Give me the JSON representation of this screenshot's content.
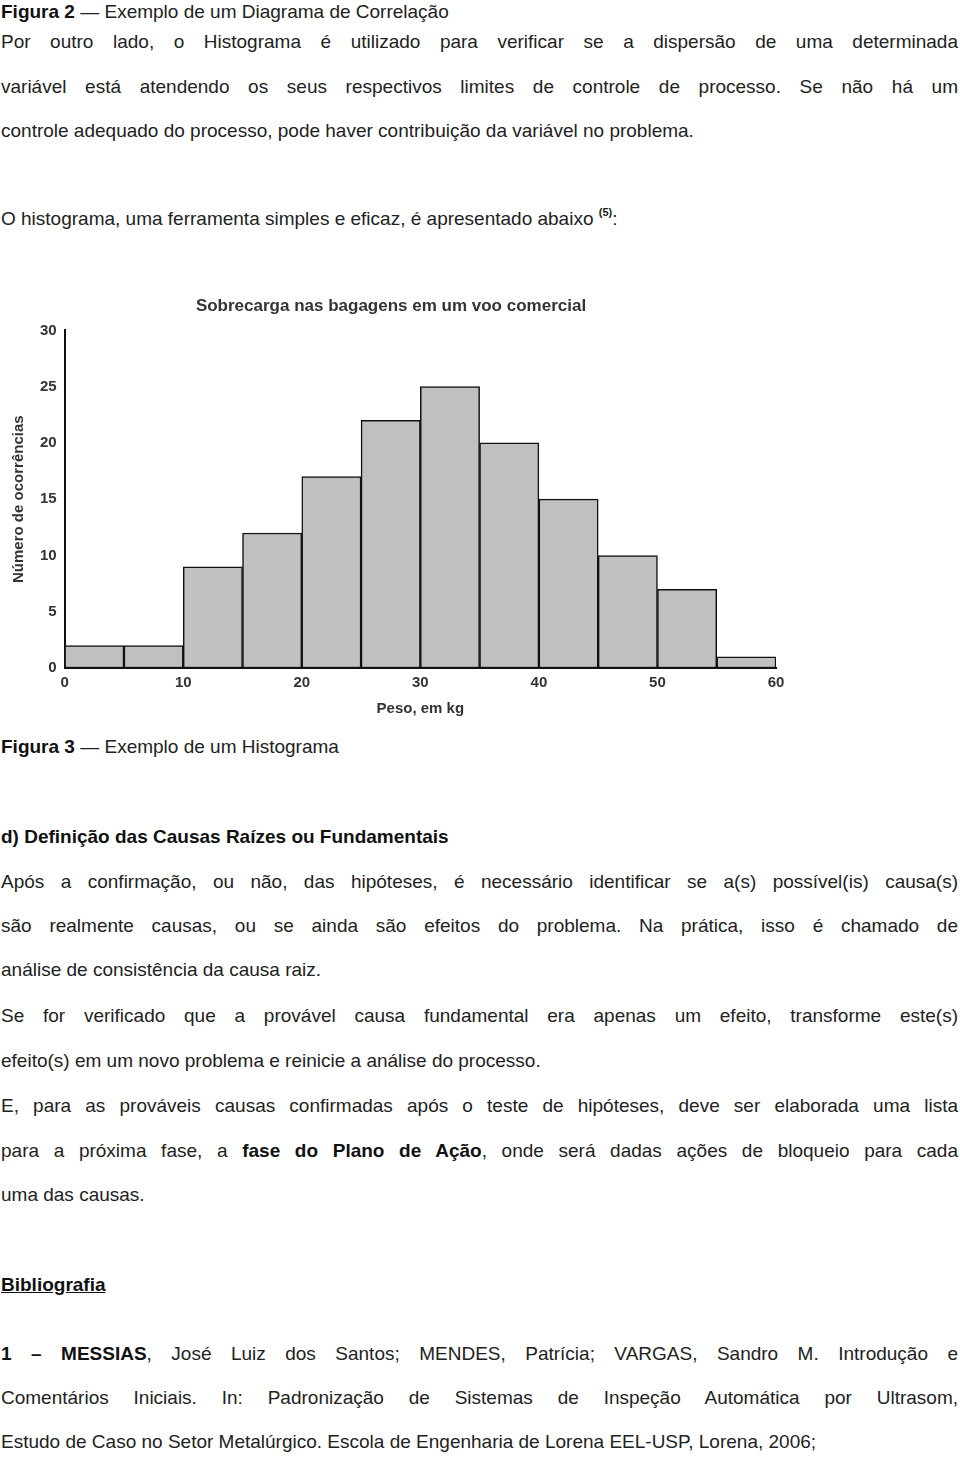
{
  "blocks": [
    {
      "lines": [
        [
          {
            "t": "Figura 2",
            "b": true
          },
          {
            "t": " — Exemplo de um Diagrama de Correlação"
          }
        ]
      ]
    },
    {
      "lines": [
        [
          {
            "t": "Por outro lado, o Histograma é utilizado para verificar se a dispersão de uma determinada"
          }
        ],
        [
          {
            "t": "variável está atendendo os seus respectivos limites de controle de processo. Se não há um"
          }
        ],
        [
          {
            "t": "controle adequado do processo, pode haver contribuição da variável no problema."
          }
        ]
      ]
    },
    {
      "lines": [
        [
          {
            "t": "O histograma, uma ferramenta simples e eficaz, é apresentado abaixo "
          },
          {
            "t": "(5)",
            "sup": true
          },
          {
            "t": ":"
          }
        ]
      ]
    },
    {
      "lines": [
        [
          {
            "t": "Figura 3",
            "b": true
          },
          {
            "t": " — Exemplo de um Histograma"
          }
        ]
      ]
    },
    {
      "lines": [
        [
          {
            "t": "d) Definição das Causas Raízes ou Fundamentais",
            "b": true
          }
        ]
      ]
    },
    {
      "lines": [
        [
          {
            "t": "Após a confirmação, ou não, das hipóteses, é necessário identificar se a(s) possível(is) causa(s)"
          }
        ],
        [
          {
            "t": "são realmente causas, ou se ainda são efeitos do problema. Na prática, isso é chamado de"
          }
        ],
        [
          {
            "t": "análise de consistência da causa raiz."
          }
        ]
      ]
    },
    {
      "lines": [
        [
          {
            "t": "Se for verificado que a provável causa fundamental era apenas um efeito, transforme este(s)"
          }
        ],
        [
          {
            "t": "efeito(s) em um novo problema e reinicie a análise do processo."
          }
        ]
      ]
    },
    {
      "lines": [
        [
          {
            "t": "E, para as prováveis causas confirmadas após o teste de hipóteses, deve ser elaborada uma lista"
          }
        ],
        [
          {
            "t": "para a próxima fase, a "
          },
          {
            "t": "fase do Plano de Ação",
            "b": true
          },
          {
            "t": ", onde será dadas ações de bloqueio para cada"
          }
        ],
        [
          {
            "t": "uma das causas."
          }
        ]
      ]
    },
    {
      "lines": [
        [
          {
            "t": "Bibliografia",
            "b": true,
            "u": true
          }
        ]
      ]
    },
    {
      "lines": [
        [
          {
            "t": "1 – MESSIAS",
            "b": true
          },
          {
            "t": ", José Luiz dos Santos; MENDES, Patrícia; VARGAS, Sandro M. Introdução e"
          }
        ],
        [
          {
            "t": "Comentários Iniciais. In: Padronização de Sistemas de Inspeção Automática por Ultrasom,"
          }
        ],
        [
          {
            "t": "Estudo de Caso no Setor Metalúrgico. Escola de Engenharia de Lorena EEL-USP, Lorena, 2006;"
          }
        ]
      ]
    }
  ],
  "chart_data": {
    "type": "histogram",
    "title": "Sobrecarga nas bagagens em um voo comercial",
    "x_label": "Peso, em kg",
    "y_label": "Número de ocorrências",
    "bins": [
      0,
      5,
      10,
      15,
      20,
      25,
      30,
      35,
      40,
      45,
      50,
      55,
      60
    ],
    "values": [
      2,
      2,
      9,
      12,
      17,
      22,
      25,
      20,
      15,
      10,
      7,
      1
    ],
    "color": "#c0c0c0",
    "xlim": [
      0,
      60
    ],
    "xticks": [
      0,
      10,
      20,
      30,
      40,
      50,
      60
    ],
    "ylim": [
      0,
      30
    ],
    "yticks": [
      0,
      5,
      10,
      15,
      20,
      25,
      30
    ],
    "grid": false
  }
}
